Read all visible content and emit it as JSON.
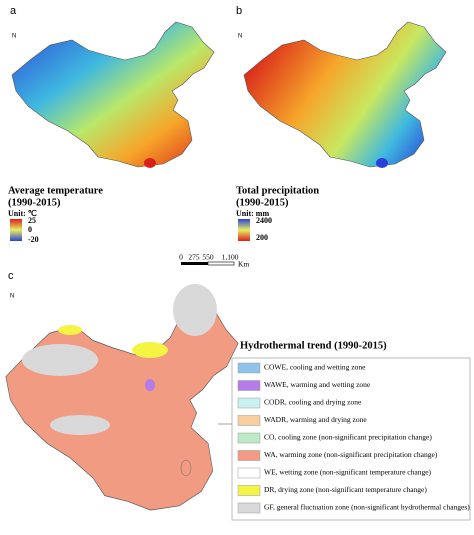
{
  "panels": [
    {
      "label": "a",
      "north": "N",
      "title_lines": [
        "Average temperature",
        "(1990-2015)"
      ],
      "unit": "Unit: ℃",
      "scale_labels": [
        "25",
        "0",
        "-20"
      ]
    },
    {
      "label": "b",
      "north": "N",
      "title_lines": [
        "Total precipitation",
        "(1990-2015)"
      ],
      "unit": "Unit: mm",
      "scale_labels": [
        "2400",
        "200"
      ]
    },
    {
      "label": "c",
      "north": "N",
      "title": "Hydrothermal trend (1990-2015)",
      "legend": [
        {
          "color": "#8fc3ea",
          "label": "COWE, cooling and wetting zone"
        },
        {
          "color": "#b57be8",
          "label": "WAWE, warming and wetting zone"
        },
        {
          "color": "#c9f1f1",
          "label": "CODR, cooling and drying zone"
        },
        {
          "color": "#f6cf9c",
          "label": "WADR, warming and drying zone"
        },
        {
          "color": "#bdeac4",
          "label": "CO, cooling zone (non-significant precipitation change)"
        },
        {
          "color": "#f09b82",
          "label": "WA, warming zone (non-significant precipitation change)"
        },
        {
          "color": "#ffffff",
          "label": "WE, wetting zone (non-significant temperature change)"
        },
        {
          "color": "#f4f444",
          "label": "DR, drying zone (non-significant temperature change)"
        },
        {
          "color": "#d9d9d9",
          "label": "GF, general fluctuation zone (non-significant hydrothermal changes)"
        }
      ]
    }
  ],
  "scale_bar": {
    "ticks": [
      "0",
      "275",
      "550",
      "1,100"
    ],
    "unit": "Km"
  }
}
